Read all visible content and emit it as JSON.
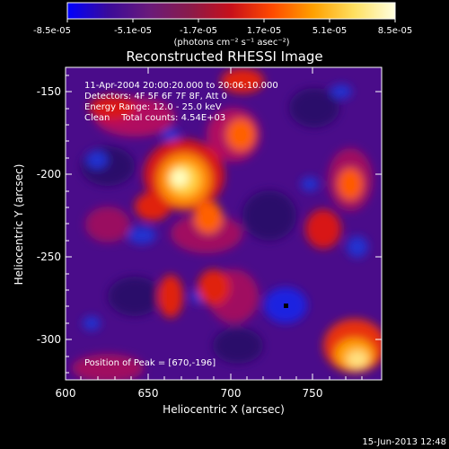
{
  "colorbar": {
    "ticks": [
      "-8.5e-05",
      "-5.1e-05",
      "-1.7e-05",
      "1.7e-05",
      "5.1e-05",
      "8.5e-05"
    ],
    "unit_label": "(photons cm⁻² s⁻¹ asec⁻²)",
    "stops": [
      "#0000ff",
      "#3a0a9a",
      "#6a1a7a",
      "#8a1a4a",
      "#c8101a",
      "#ff4a00",
      "#ffa000",
      "#ffe060",
      "#ffffe0"
    ]
  },
  "image": {
    "title": "Reconstructed RHESSI Image",
    "info_lines": [
      "11-Apr-2004 20:00:20.000 to 20:06:10.000",
      "Detectors: 4F 5F 6F 7F 8F, Att 0",
      "Energy Range: 12.0 - 25.0 keV",
      "Clean    Total counts: 4.54E+03"
    ],
    "peak_label": "Position of Peak = [670,-196]"
  },
  "axes": {
    "xlabel": "Heliocentric X (arcsec)",
    "ylabel": "Heliocentric Y (arcsec)",
    "xticks": [
      "600",
      "650",
      "700",
      "750"
    ],
    "yticks": [
      "-150",
      "-200",
      "-250",
      "-300"
    ]
  },
  "footer": {
    "date": "15-Jun-2013 12:48"
  }
}
